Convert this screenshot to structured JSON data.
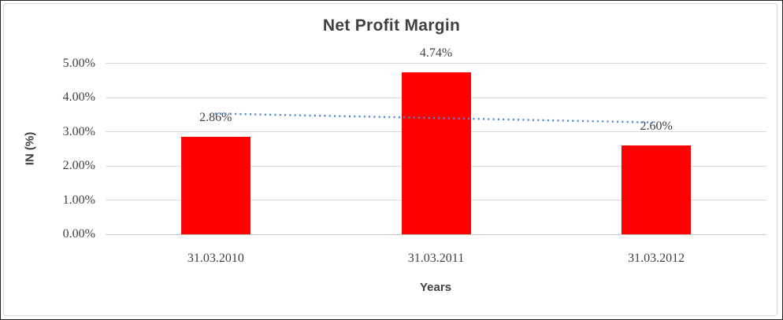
{
  "window": {
    "background": "#ffffff",
    "outer_border_color": "#262626",
    "frame_border_color": "#d9d9d9"
  },
  "chart_data": {
    "type": "bar",
    "title": "Net Profit Margin",
    "xlabel": "Years",
    "ylabel": "IN (%)",
    "categories": [
      "31.03.2010",
      "31.03.2011",
      "31.03.2012"
    ],
    "values": [
      2.86,
      4.74,
      2.6
    ],
    "data_labels": [
      "2.86%",
      "4.74%",
      "2.60%"
    ],
    "y_ticks": [
      {
        "label": "5.00%",
        "value": 5
      },
      {
        "label": "4.00%",
        "value": 4
      },
      {
        "label": "3.00%",
        "value": 3
      },
      {
        "label": "2.00%",
        "value": 2
      },
      {
        "label": "1.00%",
        "value": 1
      },
      {
        "label": "0.00%",
        "value": 0
      }
    ],
    "ylim": [
      0,
      5
    ],
    "grid": true,
    "legend_position": "none",
    "bar_color": "#ff0000",
    "text_color": "#404040",
    "gridline_color": "#d9d9d9",
    "axis_line_color": "#c9c9c9",
    "trendline": {
      "type": "linear",
      "style": "dotted",
      "color": "#4e8ad3",
      "start_value": 3.53,
      "end_value": 3.27
    }
  }
}
